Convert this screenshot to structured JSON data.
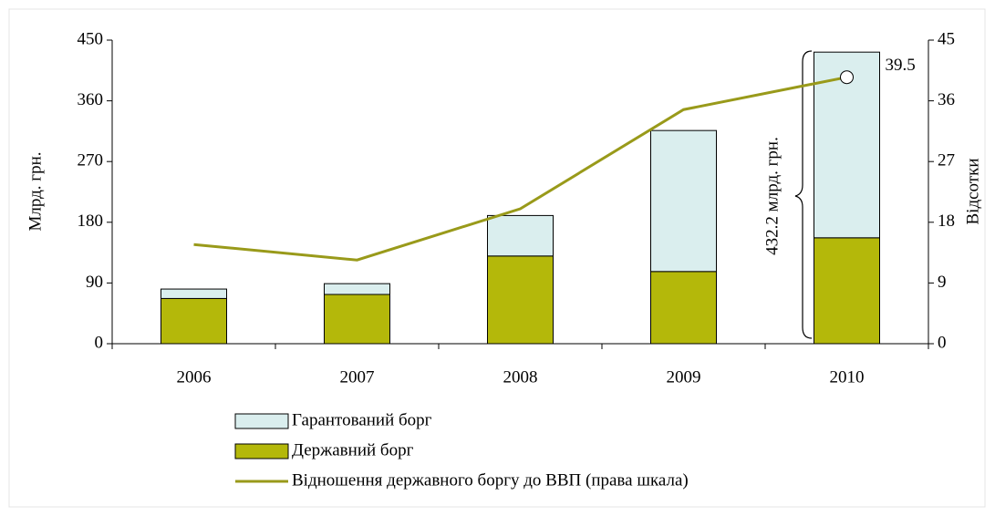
{
  "chart_data": {
    "type": "bar_line",
    "categories": [
      "2006",
      "2007",
      "2008",
      "2009",
      "2010"
    ],
    "series": [
      {
        "name": "Гарантований борг",
        "color": "#daeeee",
        "type": "bar",
        "stack_order": 1,
        "values": [
          14,
          16,
          60,
          209,
          275.2
        ]
      },
      {
        "name": "Державний борг",
        "color": "#b4b80a",
        "type": "bar",
        "stack_order": 0,
        "values": [
          67,
          73,
          130,
          107,
          157
        ]
      },
      {
        "name": "Відношення державного боргу до ВВП (права шкала)",
        "color": "#999a1a",
        "type": "line",
        "axis": "y2",
        "values": [
          14.7,
          12.4,
          20,
          34.7,
          39.5
        ],
        "value_labels": [
          null,
          null,
          null,
          null,
          "39.5"
        ]
      }
    ],
    "ylabel": "Млрд. грн.",
    "y2label": "Відсотки",
    "ylim": [
      0,
      450
    ],
    "yticks": [
      0,
      90,
      180,
      270,
      360,
      450
    ],
    "y2lim": [
      0,
      45
    ],
    "y2ticks": [
      0,
      9,
      18,
      27,
      36,
      45
    ],
    "annotation": "432.2 млрд. грн."
  }
}
